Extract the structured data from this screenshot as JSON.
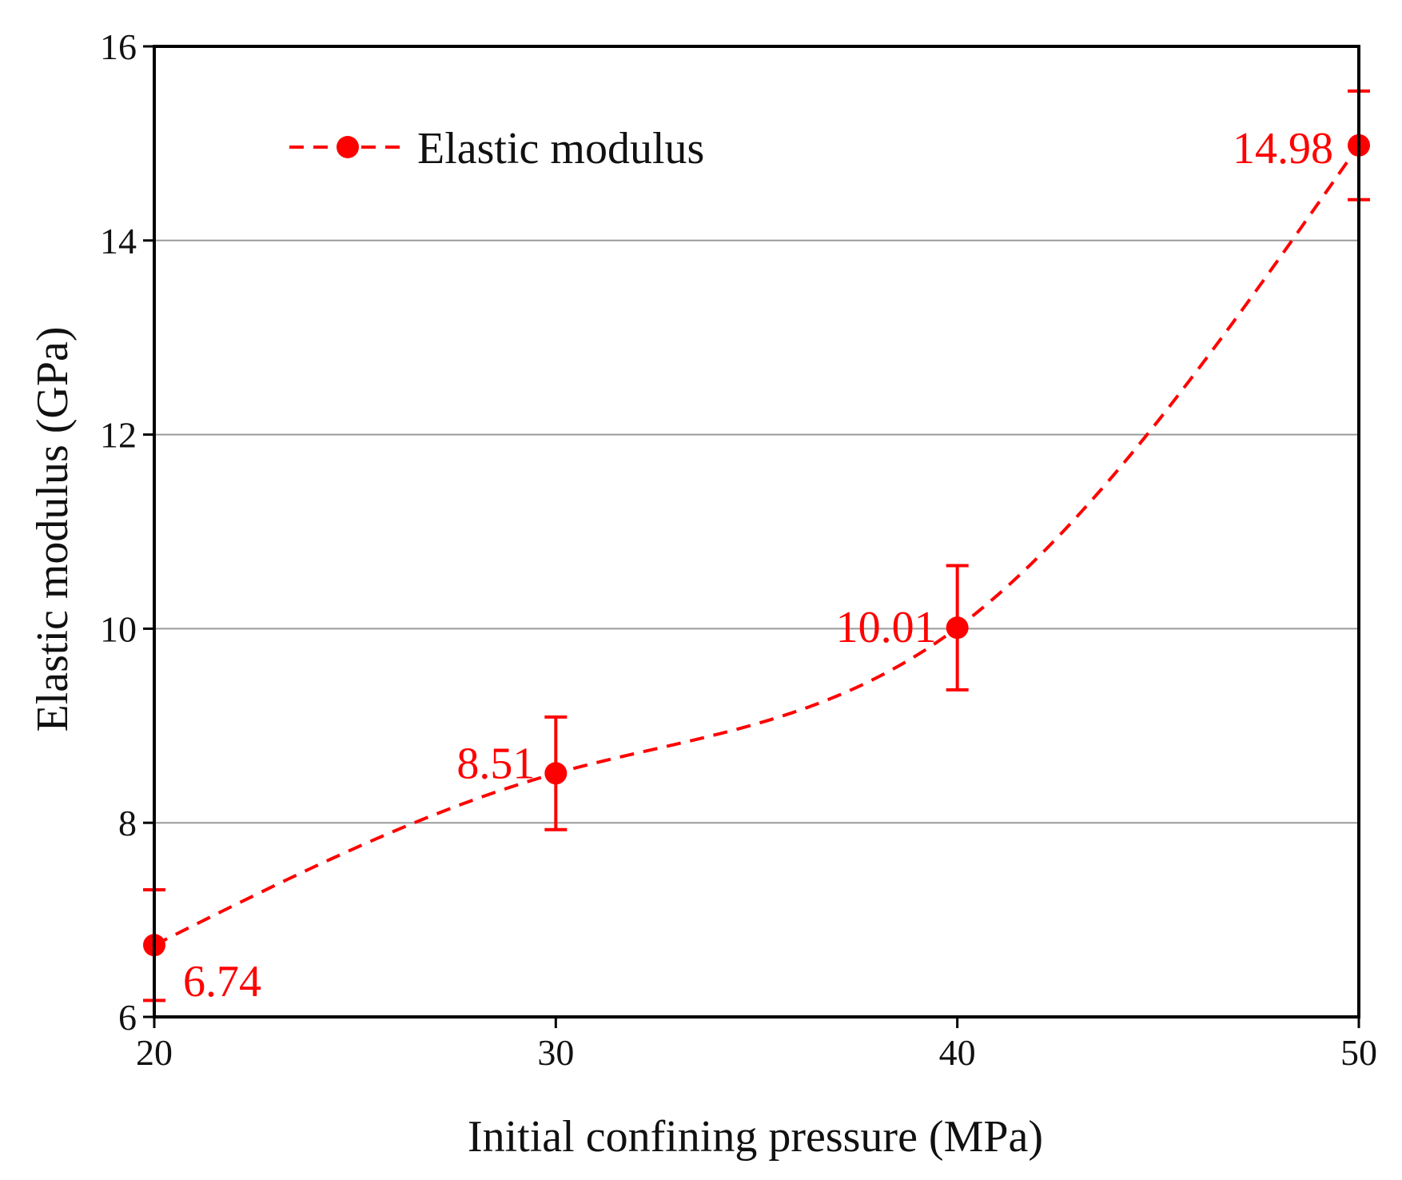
{
  "chart_data": {
    "type": "line",
    "title": "",
    "xlabel": "Initial confining pressure (MPa)",
    "ylabel": "Elastic modulus (GPa)",
    "xlim": [
      20,
      50
    ],
    "ylim": [
      6,
      16
    ],
    "xticks": [
      20,
      30,
      40,
      50
    ],
    "yticks": [
      6,
      8,
      10,
      12,
      14,
      16
    ],
    "grid": "horizontal",
    "legend_position": "top-left",
    "series": [
      {
        "name": "Elastic modulus",
        "color": "#ff0000",
        "line_style": "dashed",
        "x": [
          20,
          30,
          40,
          50
        ],
        "y": [
          6.74,
          8.51,
          10.01,
          14.98
        ],
        "error": [
          0.57,
          0.58,
          0.64,
          0.56
        ],
        "labels": [
          "6.74",
          "8.51",
          "10.01",
          "14.98"
        ]
      }
    ]
  }
}
